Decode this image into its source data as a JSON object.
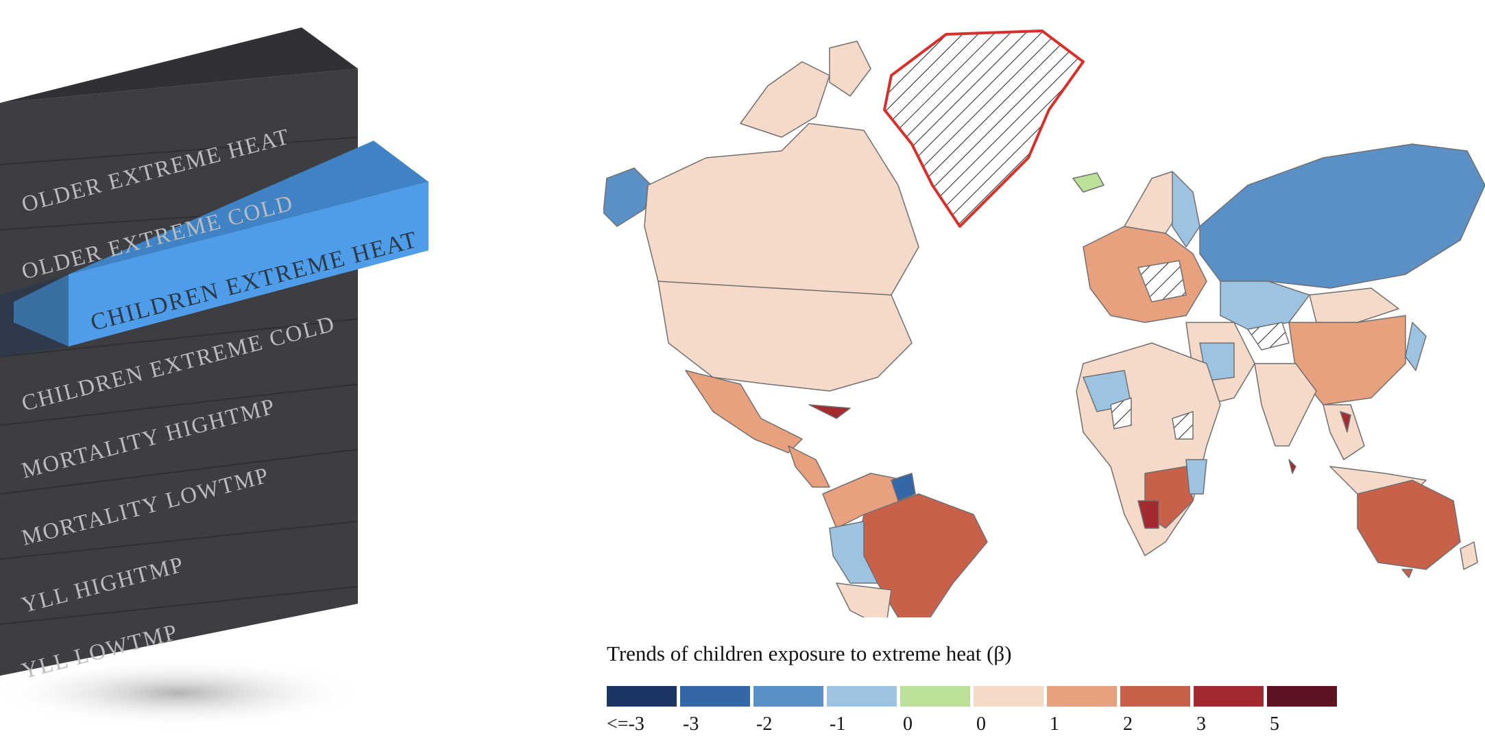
{
  "menu": {
    "items": [
      {
        "label": "OLDER EXTREME HEAT",
        "active": false
      },
      {
        "label": "OLDER EXTREME COLD",
        "active": false
      },
      {
        "label": "CHILDREN EXTREME HEAT",
        "active": true
      },
      {
        "label": "CHILDREN EXTREME COLD",
        "active": false
      },
      {
        "label": "MORTALITY HIGHTMP",
        "active": false
      },
      {
        "label": "MORTALITY LOWTMP",
        "active": false
      },
      {
        "label": "YLL HIGHTMP",
        "active": false
      },
      {
        "label": "YLL LOWTMP",
        "active": false
      }
    ],
    "colors": {
      "panel": "#3d3e42",
      "panel_top": "#35363a",
      "active": "#4f9de8",
      "active_side": "#3a6fa3"
    }
  },
  "legend": {
    "title": "Trends of children exposure to extreme heat (β)",
    "bins": [
      {
        "label": "<=-3",
        "color": "#1b3461"
      },
      {
        "label": "-3",
        "color": "#3566a8"
      },
      {
        "label": "-2",
        "color": "#5b90c6"
      },
      {
        "label": "-1",
        "color": "#9dc3e2"
      },
      {
        "label": "0",
        "color": "#bcdf9a"
      },
      {
        "label": "0",
        "color": "#f5dac9"
      },
      {
        "label": "1",
        "color": "#e8a17f"
      },
      {
        "label": "2",
        "color": "#c8604a"
      },
      {
        "label": "3",
        "color": "#a32a2f"
      },
      {
        "label": "5",
        "color": "#5e1222"
      }
    ]
  },
  "map": {
    "no_data_pattern": "hatched",
    "highlighted_region": "Greenland",
    "highlight_color": "#d7302a"
  }
}
